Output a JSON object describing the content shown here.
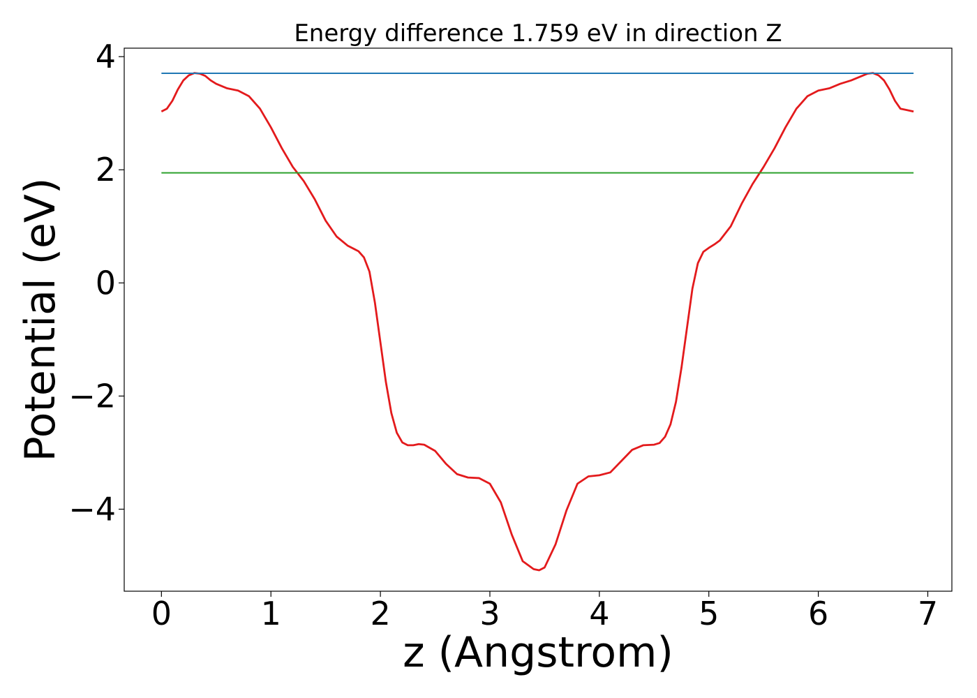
{
  "chart_data": {
    "type": "line",
    "title": "Energy difference 1.759 eV in direction Z",
    "xlabel": "z (Angstrom)",
    "ylabel": "Potential (eV)",
    "xlim": [
      -0.34,
      7.22
    ],
    "ylim": [
      -5.45,
      4.15
    ],
    "xticks": [
      0,
      1,
      2,
      3,
      4,
      5,
      6,
      7
    ],
    "xtick_labels": [
      "0",
      "1",
      "2",
      "3",
      "4",
      "5",
      "6",
      "7"
    ],
    "yticks": [
      4,
      2,
      0,
      -2,
      -4
    ],
    "ytick_labels": [
      "4",
      "2",
      "0",
      "−2",
      "−4"
    ],
    "grid": false,
    "series": [
      {
        "color": "#e31a1c",
        "x": [
          0.0,
          0.05,
          0.1,
          0.15,
          0.2,
          0.25,
          0.3,
          0.35,
          0.4,
          0.45,
          0.5,
          0.6,
          0.7,
          0.8,
          0.9,
          1.0,
          1.1,
          1.2,
          1.3,
          1.4,
          1.5,
          1.6,
          1.7,
          1.8,
          1.85,
          1.9,
          1.95,
          2.0,
          2.05,
          2.1,
          2.15,
          2.2,
          2.25,
          2.3,
          2.35,
          2.4,
          2.5,
          2.6,
          2.7,
          2.8,
          2.9,
          3.0,
          3.1,
          3.2,
          3.3,
          3.4,
          3.45,
          3.5,
          3.6,
          3.7,
          3.8,
          3.9,
          4.0,
          4.1,
          4.2,
          4.3,
          4.4,
          4.5,
          4.55,
          4.6,
          4.65,
          4.7,
          4.75,
          4.8,
          4.85,
          4.9,
          4.95,
          5.0,
          5.05,
          5.1,
          5.2,
          5.3,
          5.4,
          5.5,
          5.6,
          5.7,
          5.8,
          5.9,
          6.0,
          6.1,
          6.2,
          6.3,
          6.4,
          6.45,
          6.5,
          6.55,
          6.6,
          6.65,
          6.7,
          6.75,
          6.8,
          6.87
        ],
        "y": [
          3.03,
          3.08,
          3.22,
          3.42,
          3.58,
          3.67,
          3.71,
          3.7,
          3.66,
          3.58,
          3.52,
          3.44,
          3.4,
          3.3,
          3.08,
          2.75,
          2.38,
          2.05,
          1.8,
          1.48,
          1.1,
          0.82,
          0.66,
          0.56,
          0.45,
          0.2,
          -0.35,
          -1.05,
          -1.75,
          -2.3,
          -2.65,
          -2.82,
          -2.87,
          -2.87,
          -2.85,
          -2.86,
          -2.97,
          -3.2,
          -3.38,
          -3.44,
          -3.45,
          -3.55,
          -3.88,
          -4.45,
          -4.92,
          -5.06,
          -5.08,
          -5.03,
          -4.62,
          -4.02,
          -3.55,
          -3.42,
          -3.4,
          -3.35,
          -3.15,
          -2.95,
          -2.87,
          -2.86,
          -2.83,
          -2.72,
          -2.5,
          -2.1,
          -1.5,
          -0.8,
          -0.1,
          0.35,
          0.55,
          0.62,
          0.68,
          0.75,
          1.0,
          1.4,
          1.75,
          2.05,
          2.38,
          2.75,
          3.08,
          3.3,
          3.4,
          3.44,
          3.52,
          3.58,
          3.66,
          3.7,
          3.71,
          3.67,
          3.58,
          3.42,
          3.22,
          3.08,
          3.06,
          3.03
        ]
      },
      {
        "color": "#1f77b4",
        "x": [
          0.0,
          6.87
        ],
        "y": [
          3.705,
          3.705
        ]
      },
      {
        "color": "#2ca02c",
        "x": [
          0.0,
          6.87
        ],
        "y": [
          1.946,
          1.946
        ]
      }
    ]
  }
}
